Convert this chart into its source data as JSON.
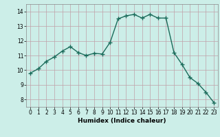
{
  "x": [
    0,
    1,
    2,
    3,
    4,
    5,
    6,
    7,
    8,
    9,
    10,
    11,
    12,
    13,
    14,
    15,
    16,
    17,
    18,
    19,
    20,
    21,
    22,
    23
  ],
  "y": [
    9.8,
    10.1,
    10.6,
    10.9,
    11.3,
    11.6,
    11.2,
    11.0,
    11.15,
    11.1,
    11.9,
    13.5,
    13.7,
    13.8,
    13.55,
    13.8,
    13.55,
    13.55,
    11.2,
    10.4,
    9.5,
    9.1,
    8.5,
    7.8
  ],
  "xlabel": "Humidex (Indice chaleur)",
  "bg_color": "#cceee8",
  "line_color": "#1a6b5a",
  "marker_color": "#1a6b5a",
  "grid_color": "#c0a0a8",
  "ylim": [
    7.5,
    14.5
  ],
  "xlim": [
    -0.5,
    23.5
  ],
  "yticks": [
    8,
    9,
    10,
    11,
    12,
    13,
    14
  ],
  "xticks": [
    0,
    1,
    2,
    3,
    4,
    5,
    6,
    7,
    8,
    9,
    10,
    11,
    12,
    13,
    14,
    15,
    16,
    17,
    18,
    19,
    20,
    21,
    22,
    23
  ]
}
